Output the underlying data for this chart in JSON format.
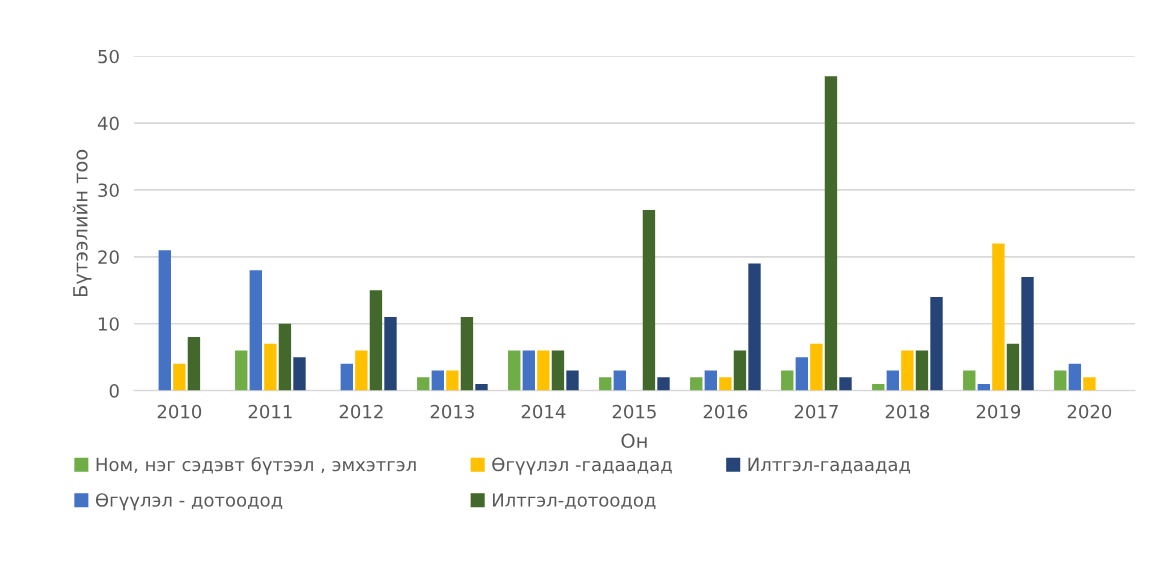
{
  "chart_data": {
    "type": "bar",
    "xlabel": "Он",
    "ylabel": "Бүтээлийн тоо",
    "categories": [
      "2010",
      "2011",
      "2012",
      "2013",
      "2014",
      "2015",
      "2016",
      "2017",
      "2018",
      "2019",
      "2020"
    ],
    "series": [
      {
        "name": "Ном, нэг сэдэвт бүтээл , эмхэтгэл",
        "color": "#70ad47",
        "values": [
          0,
          6,
          0,
          2,
          6,
          2,
          2,
          3,
          1,
          3,
          3
        ]
      },
      {
        "name": "Өгүүлэл - дотоодод",
        "color": "#4472c4",
        "values": [
          21,
          18,
          4,
          3,
          6,
          3,
          3,
          5,
          3,
          1,
          4
        ]
      },
      {
        "name": "Өгүүлэл -гадаадад",
        "color": "#ffc000",
        "values": [
          4,
          7,
          6,
          3,
          6,
          0,
          2,
          7,
          6,
          22,
          2
        ]
      },
      {
        "name": "Илтгэл-дотоодод",
        "color": "#43682b",
        "values": [
          8,
          10,
          15,
          11,
          6,
          27,
          6,
          47,
          6,
          7,
          0
        ]
      },
      {
        "name": "Илтгэл-гадаадад",
        "color": "#264478",
        "values": [
          0,
          5,
          11,
          1,
          3,
          2,
          19,
          2,
          14,
          17,
          0
        ]
      }
    ],
    "ylim": [
      0,
      50
    ],
    "yticks": [
      0,
      10,
      20,
      30,
      40,
      50
    ],
    "grid": "y",
    "legend": "bottom"
  }
}
